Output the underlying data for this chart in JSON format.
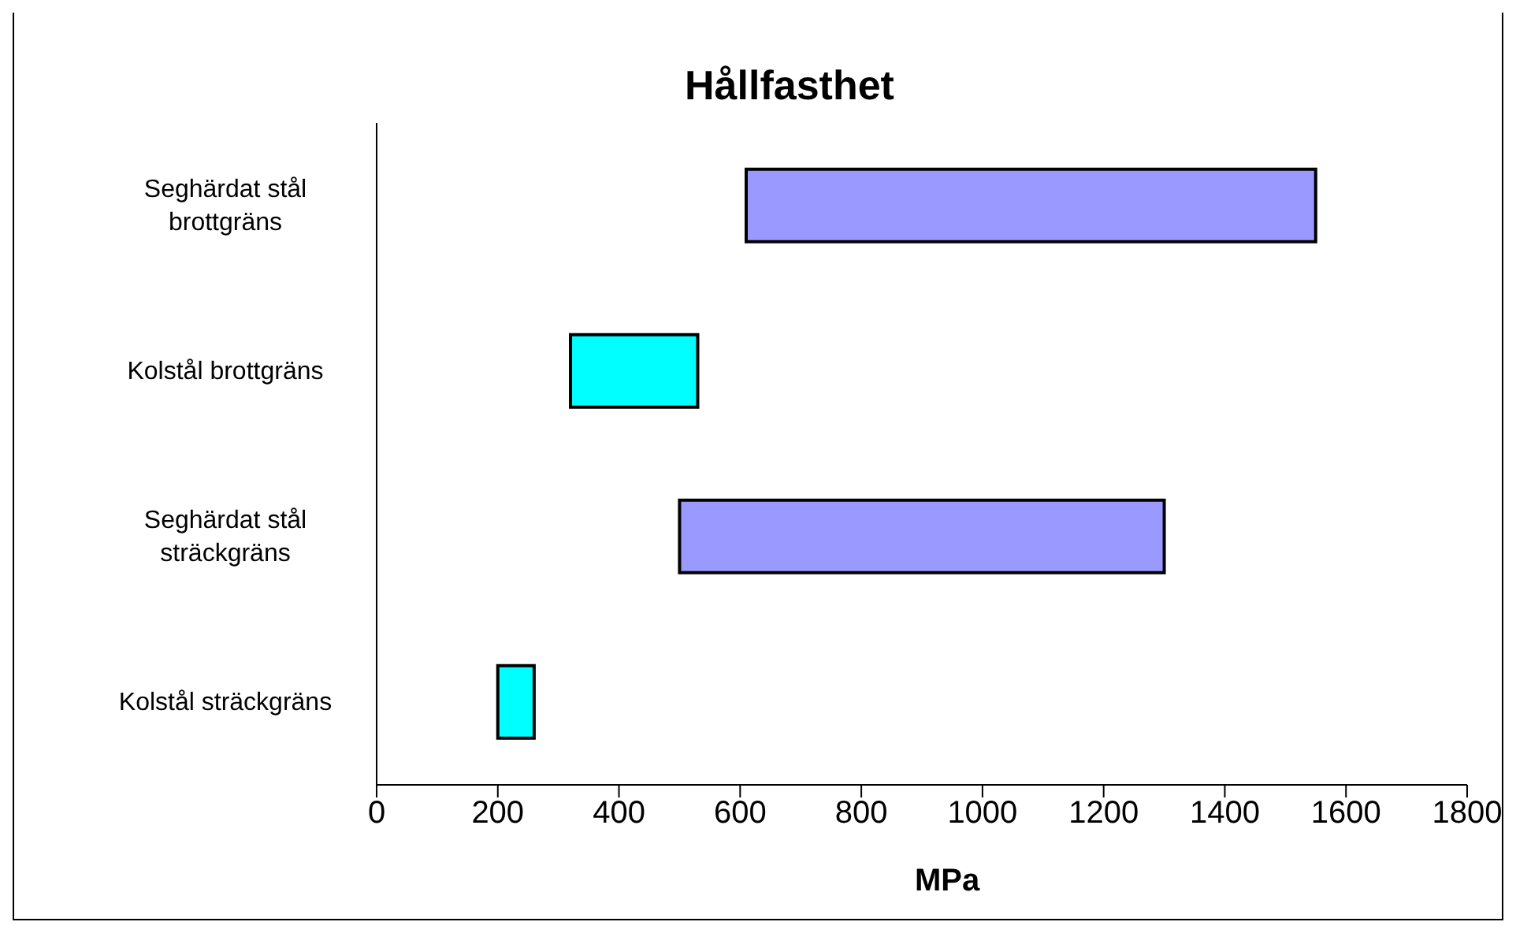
{
  "chart_data": {
    "type": "bar",
    "orientation": "horizontal",
    "title": "Hållfasthet",
    "xlabel": "MPa",
    "categories": [
      "Seghärdat stål brottgräns",
      "Kolstål brottgräns",
      "Seghärdat stål sträckgräns",
      "Kolstål sträckgräns"
    ],
    "base": [
      610,
      320,
      500,
      200
    ],
    "values": [
      940,
      210,
      800,
      60
    ],
    "colors": [
      "#9999ff",
      "#00ffff",
      "#9999ff",
      "#00ffff"
    ],
    "xlim": [
      0,
      1800
    ],
    "xticks": [
      0,
      200,
      400,
      600,
      800,
      1000,
      1200,
      1400,
      1600,
      1800
    ],
    "grid": false
  }
}
